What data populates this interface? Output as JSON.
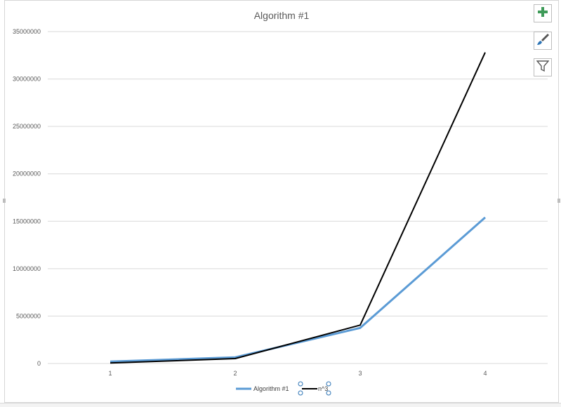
{
  "chart_data": {
    "type": "line",
    "title": "Algorithm #1",
    "categories": [
      "1",
      "2",
      "3",
      "4"
    ],
    "ylim": [
      0,
      35000000
    ],
    "yticks": [
      "0",
      "5000000",
      "10000000",
      "15000000",
      "20000000",
      "25000000",
      "30000000",
      "35000000"
    ],
    "grid": true,
    "legend_position": "bottom",
    "series": [
      {
        "name": "Algorithm #1",
        "values": [
          200000,
          650000,
          3750000,
          15400000
        ],
        "color": "#5b9bd5"
      },
      {
        "name": "n^3",
        "values": [
          50000,
          520000,
          4050000,
          32800000
        ],
        "color": "#000000"
      }
    ]
  },
  "toolbar": {
    "add_icon": "plus-icon",
    "style_icon": "brush-icon",
    "filter_icon": "funnel-icon"
  }
}
